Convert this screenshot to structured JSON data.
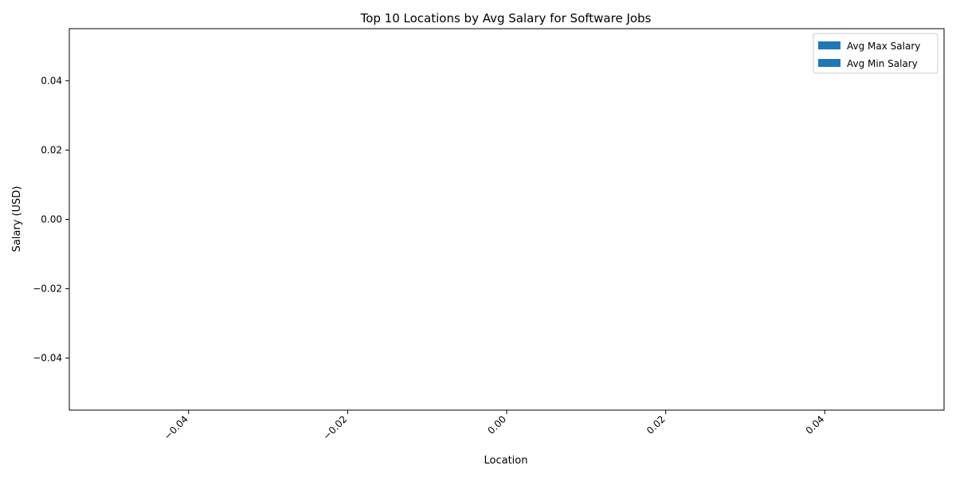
{
  "chart_data": {
    "type": "bar",
    "title": "Top 10 Locations by Avg Salary for Software Jobs",
    "xlabel": "Location",
    "ylabel": "Salary (USD)",
    "categories": [],
    "series": [
      {
        "name": "Avg Max Salary",
        "values": [],
        "color": "#1f77b4"
      },
      {
        "name": "Avg Min Salary",
        "values": [],
        "color": "#1f77b4"
      }
    ],
    "xlim": [
      -0.055,
      0.055
    ],
    "ylim": [
      -0.055,
      0.055
    ],
    "x_ticks": [
      -0.04,
      -0.02,
      0.0,
      0.02,
      0.04
    ],
    "x_tick_labels": [
      "−0.04",
      "−0.02",
      "0.00",
      "0.02",
      "0.04"
    ],
    "y_ticks": [
      0.04,
      0.02,
      0.0,
      -0.02,
      -0.04
    ],
    "y_tick_labels": [
      "0.04",
      "0.02",
      "0.00",
      "−0.02",
      "−0.04"
    ],
    "grid": false,
    "legend_position": "top-right"
  }
}
